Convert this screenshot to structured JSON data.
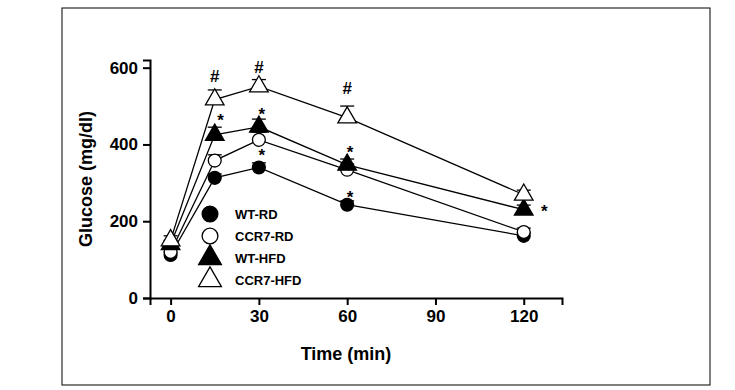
{
  "chart_data": {
    "type": "line",
    "x_label": "Time (min)",
    "y_label": "Glucose (mg/dl)",
    "x": [
      0,
      15,
      30,
      60,
      120
    ],
    "xlim": [
      -7,
      133
    ],
    "xticks": [
      0,
      30,
      60,
      90,
      120
    ],
    "ylim": [
      0,
      620
    ],
    "yticks": [
      0,
      200,
      400,
      600
    ],
    "legend": "lower left",
    "series": [
      {
        "name": "WT-RD",
        "color": "#000000",
        "marker": "circle",
        "line_style": "solid",
        "values": [
          112,
          313,
          340,
          243,
          162
        ],
        "errors": [
          8,
          10,
          12,
          10,
          8
        ]
      },
      {
        "name": "CCR7-RD",
        "color": "#000000",
        "marker": "open-circle",
        "line_style": "solid",
        "values": [
          120,
          358,
          412,
          334,
          172
        ],
        "errors": [
          10,
          15,
          20,
          15,
          10
        ]
      },
      {
        "name": "WT-HFD",
        "color": "#000000",
        "marker": "triangle",
        "line_style": "solid",
        "values": [
          140,
          425,
          446,
          347,
          230
        ],
        "errors": [
          10,
          20,
          20,
          15,
          12
        ]
      },
      {
        "name": "CCR7-HFD",
        "color": "#000000",
        "marker": "open-triangle",
        "line_style": "solid",
        "values": [
          150,
          517,
          551,
          470,
          269
        ],
        "errors": [
          12,
          25,
          18,
          30,
          12
        ]
      }
    ],
    "annotations": [
      {
        "text": "#",
        "x": 15,
        "y": 578
      },
      {
        "text": "#",
        "x": 30,
        "y": 600
      },
      {
        "text": "#",
        "x": 60,
        "y": 545
      },
      {
        "text": "*",
        "x": 17,
        "y": 462
      },
      {
        "text": "*",
        "x": 31,
        "y": 478
      },
      {
        "text": "*",
        "x": 31,
        "y": 372
      },
      {
        "text": "*",
        "x": 61,
        "y": 380
      },
      {
        "text": "*",
        "x": 61,
        "y": 262
      },
      {
        "text": "*",
        "x": 127,
        "y": 225
      }
    ]
  }
}
